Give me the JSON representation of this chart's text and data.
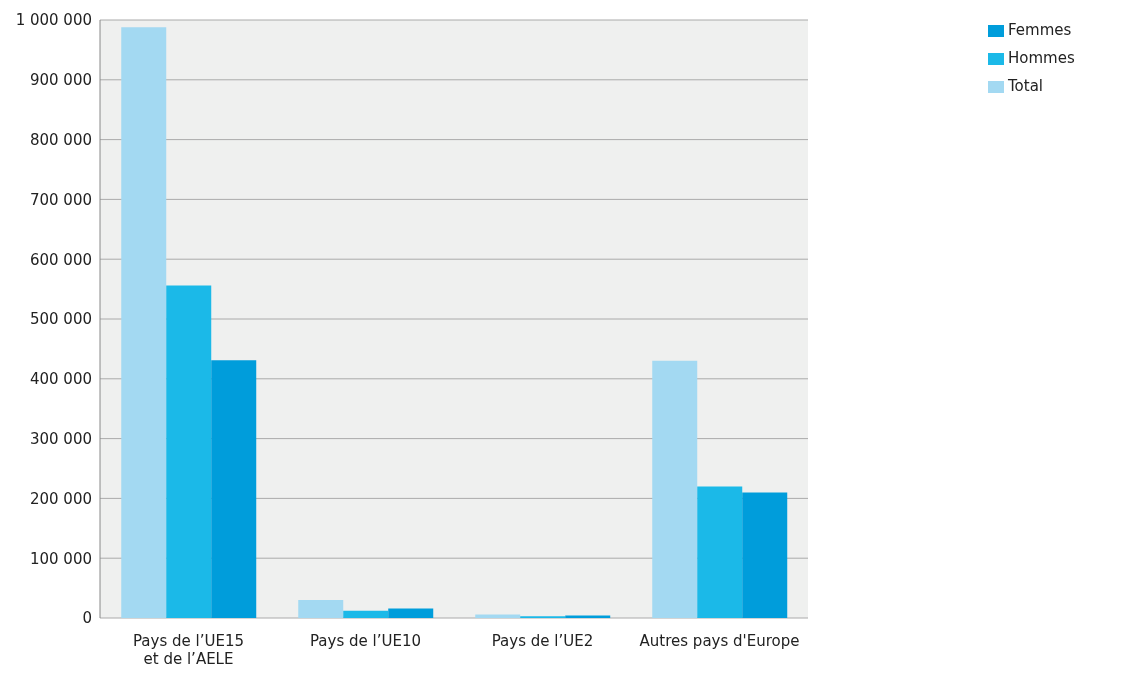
{
  "chart_data": {
    "type": "bar",
    "categories": [
      "Pays de l’UE15\net de l’AELE",
      "Pays de l’UE10",
      "Pays de l’UE2",
      "Autres pays d'Europe"
    ],
    "series": [
      {
        "name": "Total",
        "color": "#a3d9f2",
        "values": [
          988000,
          30000,
          6000,
          430000
        ]
      },
      {
        "name": "Hommes",
        "color": "#1bb9e8",
        "values": [
          556000,
          12000,
          3000,
          220000
        ]
      },
      {
        "name": "Femmes",
        "color": "#009ddb",
        "values": [
          431000,
          16000,
          4000,
          210000
        ]
      }
    ],
    "ylim": [
      0,
      1000000
    ],
    "yticks": [
      0,
      {
        "value": 100000,
        "label": "100 000"
      },
      {
        "value": 200000,
        "label": "200 000"
      },
      {
        "value": 300000,
        "label": "300 000"
      },
      {
        "value": 400000,
        "label": "400 000"
      },
      {
        "value": 500000,
        "label": "500 000"
      },
      {
        "value": 600000,
        "label": "600 000"
      },
      {
        "value": 700000,
        "label": "700 000"
      },
      {
        "value": 800000,
        "label": "800 000"
      },
      {
        "value": 900000,
        "label": "900 000"
      },
      {
        "value": 1000000,
        "label": "1 000 000"
      }
    ],
    "grid": "y",
    "legend": "top right"
  }
}
